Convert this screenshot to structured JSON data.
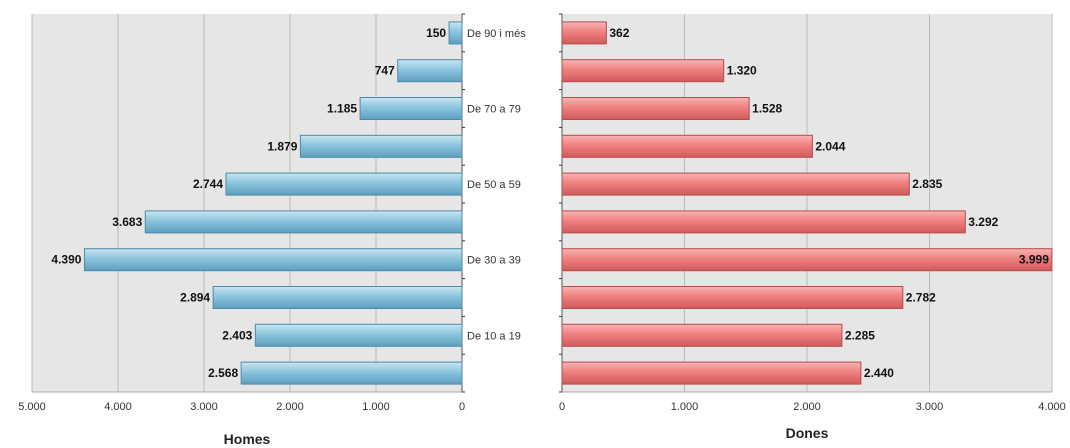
{
  "chart_data": [
    {
      "type": "bar",
      "orientation": "horizontal",
      "direction": "reversed",
      "xlabel": "Homes",
      "ylabel": "",
      "title": "",
      "xlim": [
        0,
        5000
      ],
      "ticks": [
        "5.000",
        "4.000",
        "3.000",
        "2.000",
        "1.000",
        "0"
      ],
      "tick_values": [
        5000,
        4000,
        3000,
        2000,
        1000,
        0
      ],
      "grid": true,
      "colors": {
        "bar": "#8cc4dc",
        "bar_border": "#4d8aa8",
        "background": "#e6e6e6",
        "grid": "#bbbbbb"
      },
      "categories": [
        "De 90 i més",
        "",
        "De 70 a 79",
        "",
        "De 50 a 59",
        "",
        "De 30 a 39",
        "",
        "De 10 a 19",
        ""
      ],
      "values": [
        150,
        747,
        1185,
        1879,
        2744,
        3683,
        4390,
        2894,
        2403,
        2568
      ],
      "value_labels": [
        "150",
        "747",
        "1.185",
        "1.879",
        "2.744",
        "3.683",
        "4.390",
        "2.894",
        "2.403",
        "2.568"
      ]
    },
    {
      "type": "bar",
      "orientation": "horizontal",
      "xlabel": "Dones",
      "ylabel": "",
      "title": "",
      "xlim": [
        0,
        4000
      ],
      "ticks": [
        "0",
        "1.000",
        "2.000",
        "3.000",
        "4.000"
      ],
      "tick_values": [
        0,
        1000,
        2000,
        3000,
        4000
      ],
      "grid": true,
      "colors": {
        "bar": "#f08080",
        "bar_border": "#b84a4a",
        "background": "#e6e6e6",
        "grid": "#bbbbbb"
      },
      "values": [
        362,
        1320,
        1528,
        2044,
        2835,
        3292,
        3999,
        2782,
        2285,
        2440
      ],
      "value_labels": [
        "362",
        "1.320",
        "1.528",
        "2.044",
        "2.835",
        "3.292",
        "3.999",
        "2.782",
        "2.285",
        "2.440"
      ]
    }
  ]
}
